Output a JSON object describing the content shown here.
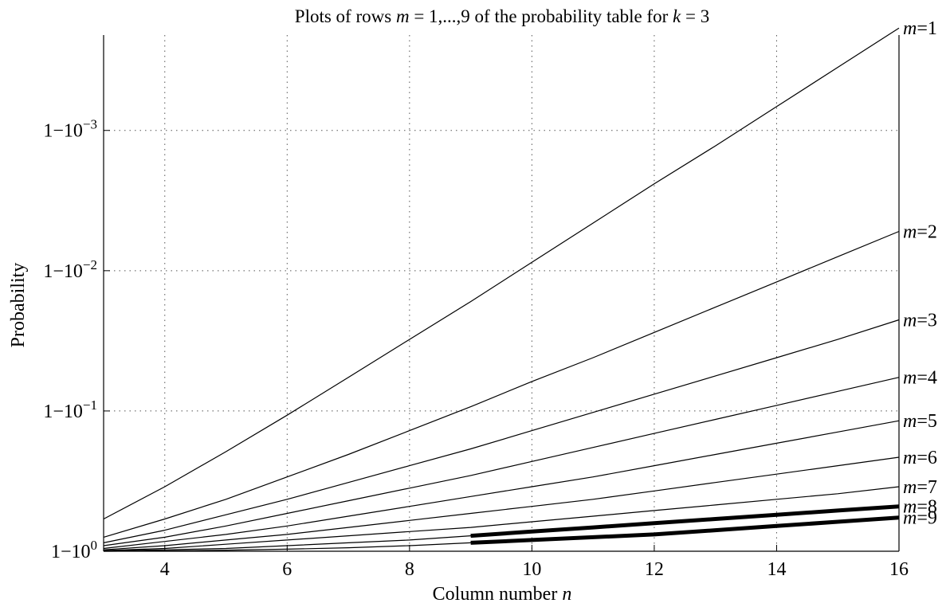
{
  "chart_data": {
    "type": "line",
    "title": "Plots of rows  m = 1,...,9  of the probability table for  k = 3",
    "xlabel": "Column number n",
    "ylabel": "Probability",
    "xlim": [
      3,
      16
    ],
    "y_scale": "log of (1 - probability)",
    "ylim_log_exponent": [
      0,
      -3.7
    ],
    "x_ticks": [
      4,
      6,
      8,
      10,
      12,
      14,
      16
    ],
    "y_ticks": [
      {
        "exponent": 0,
        "label": "1−10",
        "sup": "0"
      },
      {
        "exponent": -1,
        "label": "1−10",
        "sup": "−1"
      },
      {
        "exponent": -2,
        "label": "1−10",
        "sup": "−2"
      },
      {
        "exponent": -3,
        "label": "1−10",
        "sup": "−3"
      }
    ],
    "grid": true,
    "series": [
      {
        "name": "m=1",
        "label_prefix": "m",
        "label_value": "=1",
        "emphasis": false,
        "x": [
          3,
          4,
          5,
          6,
          7,
          8,
          9,
          10,
          11,
          12,
          13,
          14,
          15,
          16
        ],
        "y_exp": [
          -0.23,
          -0.46,
          -0.71,
          -0.97,
          -1.24,
          -1.51,
          -1.78,
          -2.06,
          -2.34,
          -2.62,
          -2.89,
          -3.17,
          -3.45,
          -3.73
        ]
      },
      {
        "name": "m=2",
        "label_prefix": "m",
        "label_value": "=2",
        "emphasis": false,
        "x": [
          3,
          4,
          5,
          6,
          7,
          8,
          9,
          10,
          11,
          12,
          13,
          14,
          15,
          16
        ],
        "y_exp": [
          -0.1,
          -0.23,
          -0.37,
          -0.53,
          -0.69,
          -0.86,
          -1.03,
          -1.21,
          -1.38,
          -1.56,
          -1.74,
          -1.92,
          -2.1,
          -2.28
        ]
      },
      {
        "name": "m=3",
        "label_prefix": "m",
        "label_value": "=3",
        "emphasis": false,
        "x": [
          3,
          4,
          5,
          6,
          7,
          8,
          9,
          10,
          11,
          12,
          13,
          14,
          15,
          16
        ],
        "y_exp": [
          -0.06,
          -0.15,
          -0.26,
          -0.37,
          -0.49,
          -0.61,
          -0.73,
          -0.86,
          -0.99,
          -1.12,
          -1.25,
          -1.38,
          -1.51,
          -1.65
        ]
      },
      {
        "name": "m=4",
        "label_prefix": "m",
        "label_value": "=4",
        "emphasis": false,
        "x": [
          3,
          4,
          5,
          6,
          7,
          8,
          9,
          10,
          11,
          12,
          13,
          14,
          15,
          16
        ],
        "y_exp": [
          -0.04,
          -0.1,
          -0.18,
          -0.27,
          -0.36,
          -0.45,
          -0.54,
          -0.64,
          -0.74,
          -0.84,
          -0.94,
          -1.04,
          -1.14,
          -1.24
        ]
      },
      {
        "name": "m=5",
        "label_prefix": "m",
        "label_value": "=5",
        "emphasis": false,
        "x": [
          3,
          4,
          5,
          6,
          7,
          8,
          9,
          10,
          11,
          12,
          13,
          14,
          15,
          16
        ],
        "y_exp": [
          -0.02,
          -0.07,
          -0.12,
          -0.18,
          -0.25,
          -0.32,
          -0.39,
          -0.46,
          -0.53,
          -0.61,
          -0.69,
          -0.77,
          -0.85,
          -0.93
        ]
      },
      {
        "name": "m=6",
        "label_prefix": "m",
        "label_value": "=6",
        "emphasis": false,
        "x": [
          3,
          4,
          5,
          6,
          7,
          8,
          9,
          10,
          11,
          12,
          13,
          14,
          15,
          16
        ],
        "y_exp": [
          -0.01,
          -0.04,
          -0.08,
          -0.12,
          -0.17,
          -0.22,
          -0.27,
          -0.32,
          -0.37,
          -0.43,
          -0.49,
          -0.55,
          -0.61,
          -0.67
        ]
      },
      {
        "name": "m=7",
        "label_prefix": "m",
        "label_value": "=7",
        "emphasis": false,
        "x": [
          3,
          4,
          5,
          6,
          7,
          8,
          9,
          10,
          11,
          12,
          13,
          14,
          15,
          16
        ],
        "y_exp": [
          -0.005,
          -0.02,
          -0.05,
          -0.08,
          -0.11,
          -0.14,
          -0.17,
          -0.21,
          -0.25,
          -0.29,
          -0.33,
          -0.37,
          -0.41,
          -0.46
        ]
      },
      {
        "name": "m=8",
        "label_prefix": "m",
        "label_value": "=8",
        "emphasis": true,
        "x": [
          3,
          4,
          5,
          6,
          7,
          8,
          9,
          10,
          11,
          12,
          13,
          14,
          15,
          16
        ],
        "y_exp": [
          -0.002,
          -0.01,
          -0.02,
          -0.04,
          -0.06,
          -0.08,
          -0.11,
          -0.14,
          -0.17,
          -0.2,
          -0.23,
          -0.26,
          -0.29,
          -0.32
        ],
        "emphasis_from_x": 9
      },
      {
        "name": "m=9",
        "label_prefix": "m",
        "label_value": "=9",
        "emphasis": true,
        "x": [
          3,
          4,
          5,
          6,
          7,
          8,
          9,
          10,
          11,
          12,
          13,
          14,
          15,
          16
        ],
        "y_exp": [
          0,
          -0.003,
          -0.008,
          -0.015,
          -0.025,
          -0.04,
          -0.06,
          -0.08,
          -0.1,
          -0.12,
          -0.15,
          -0.18,
          -0.21,
          -0.24
        ],
        "emphasis_from_x": 9
      }
    ]
  }
}
